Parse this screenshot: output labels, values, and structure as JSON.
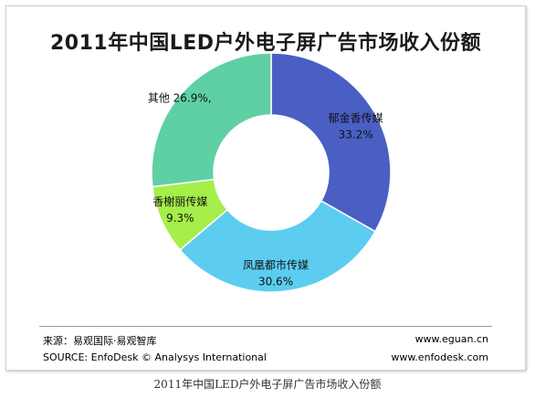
{
  "chart_data": {
    "type": "pie",
    "title": "2011年中国LED户外电子屏广告市场收入份额",
    "categories": [
      "郁金香传媒",
      "凤凰都市传媒",
      "香榭丽传媒",
      "其他"
    ],
    "values": [
      33.2,
      30.6,
      9.3,
      26.9
    ],
    "value_labels": [
      "33.2%",
      "30.6%",
      "9.3%",
      "26.9%,"
    ],
    "colors": [
      "#4a5fc4",
      "#5ccdf0",
      "#a6ee4a",
      "#5fd0a4"
    ],
    "donut": true
  },
  "footer": {
    "source_cn": "来源：易观国际·易观智库",
    "source_en": "SOURCE: EnfoDesk © Analysys International",
    "url1": "www.eguan.cn",
    "url2": "www.enfodesk.com"
  },
  "caption": "2011年中国LED户外电子屏广告市场收入份额"
}
